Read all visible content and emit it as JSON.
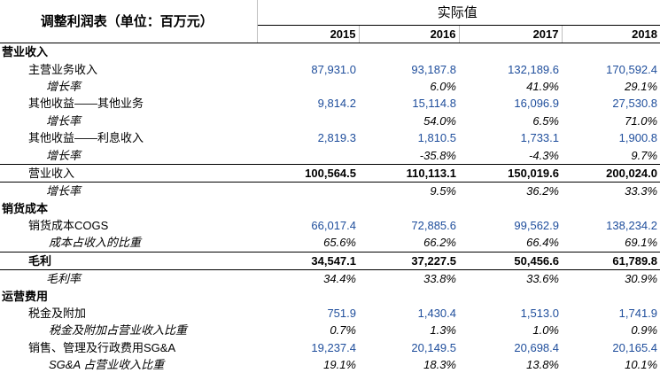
{
  "header": {
    "title": "调整利润表（单位：百万元）",
    "group": "实际值",
    "years": [
      "2015",
      "2016",
      "2017",
      "2018"
    ]
  },
  "rows": [
    {
      "type": "sec",
      "label": "营业收入",
      "values": [
        "",
        "",
        "",
        ""
      ]
    },
    {
      "type": "item",
      "label": "主营业务收入",
      "values": [
        "87,931.0",
        "93,187.8",
        "132,189.6",
        "170,592.4"
      ]
    },
    {
      "type": "rate",
      "label": "增长率",
      "values": [
        "",
        "6.0%",
        "41.9%",
        "29.1%"
      ]
    },
    {
      "type": "item",
      "label": "其他收益——其他业务",
      "values": [
        "9,814.2",
        "15,114.8",
        "16,096.9",
        "27,530.8"
      ]
    },
    {
      "type": "rate",
      "label": "增长率",
      "values": [
        "",
        "54.0%",
        "6.5%",
        "71.0%"
      ]
    },
    {
      "type": "item",
      "label": "其他收益——利息收入",
      "values": [
        "2,819.3",
        "1,810.5",
        "1,733.1",
        "1,900.8"
      ]
    },
    {
      "type": "rate",
      "label": "增长率",
      "values": [
        "",
        "-35.8%",
        "-4.3%",
        "9.7%"
      ]
    },
    {
      "type": "total",
      "label": "营业收入",
      "values": [
        "100,564.5",
        "110,113.1",
        "150,019.6",
        "200,024.0"
      ]
    },
    {
      "type": "rate",
      "label": "增长率",
      "values": [
        "",
        "9.5%",
        "36.2%",
        "33.3%"
      ]
    },
    {
      "type": "sec",
      "label": "销货成本",
      "values": [
        "",
        "",
        "",
        ""
      ]
    },
    {
      "type": "item",
      "label": "销货成本COGS",
      "values": [
        "66,017.4",
        "72,885.6",
        "99,562.9",
        "138,234.2"
      ]
    },
    {
      "type": "ratio",
      "label": "成本占收入的比重",
      "values": [
        "65.6%",
        "66.2%",
        "66.4%",
        "69.1%"
      ]
    },
    {
      "type": "totalb",
      "label": "毛利",
      "values": [
        "34,547.1",
        "37,227.5",
        "50,456.6",
        "61,789.8"
      ]
    },
    {
      "type": "rate",
      "label": "毛利率",
      "values": [
        "34.4%",
        "33.8%",
        "33.6%",
        "30.9%"
      ]
    },
    {
      "type": "sec",
      "label": "运营费用",
      "values": [
        "",
        "",
        "",
        ""
      ]
    },
    {
      "type": "item",
      "label": "税金及附加",
      "values": [
        "751.9",
        "1,430.4",
        "1,513.0",
        "1,741.9"
      ]
    },
    {
      "type": "ratio",
      "label": "税金及附加占营业收入比重",
      "values": [
        "0.7%",
        "1.3%",
        "1.0%",
        "0.9%"
      ]
    },
    {
      "type": "item",
      "label": "销售、管理及行政费用SG&A",
      "values": [
        "19,237.4",
        "20,149.5",
        "20,698.4",
        "20,165.4"
      ]
    },
    {
      "type": "ratio",
      "label": "SG&A 占营业收入比重",
      "values": [
        "19.1%",
        "18.3%",
        "13.8%",
        "10.1%"
      ]
    }
  ]
}
